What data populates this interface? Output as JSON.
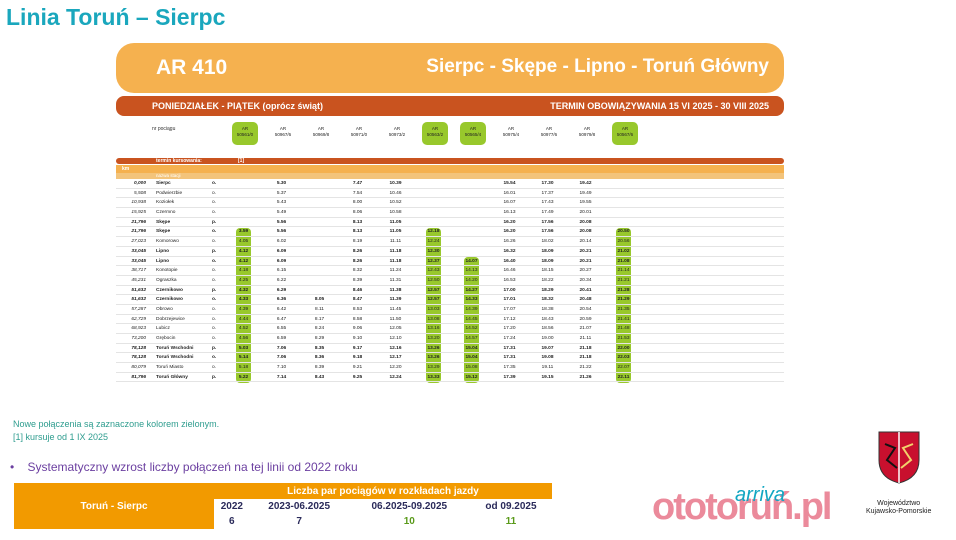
{
  "title": "Linia Toruń – Sierpc",
  "banner": {
    "train": "AR 410",
    "route": "Sierpc - Skępe - Lipno - Toruń Główny"
  },
  "daybar": {
    "left": "PONIEDZIAŁEK - PIĄTEK (oprócz świąt)",
    "right": "TERMIN OBOWIĄZYWANIA 15 VI 2025 - 30 VIII 2025"
  },
  "train_no_label": "nr pociągu",
  "trains": [
    {
      "line1": "AR",
      "line2": "50561/0",
      "green": true
    },
    {
      "line1": "AR",
      "line2": "50967/6",
      "green": false
    },
    {
      "line1": "AR",
      "line2": "50969/8",
      "green": false
    },
    {
      "line1": "AR",
      "line2": "50971/0",
      "green": false
    },
    {
      "line1": "AR",
      "line2": "50973/2",
      "green": false
    },
    {
      "line1": "AR",
      "line2": "50563/2",
      "green": true
    },
    {
      "line1": "AR",
      "line2": "50565/4",
      "green": true
    },
    {
      "line1": "AR",
      "line2": "50975/4",
      "green": false
    },
    {
      "line1": "AR",
      "line2": "50977/6",
      "green": false
    },
    {
      "line1": "AR",
      "line2": "50979/8",
      "green": false
    },
    {
      "line1": "AR",
      "line2": "50567/6",
      "green": true
    }
  ],
  "term_label": "termin kursowania:",
  "term_note": "[1]",
  "km_label": "km",
  "station_label": "nazwa stacji",
  "rows": [
    {
      "km": "0,000",
      "st": "Sierpc",
      "ad": "o.",
      "b": true,
      "t": [
        "",
        "5.30",
        "",
        "7.47",
        "10.39",
        "",
        "",
        "15.54",
        "17.30",
        "19.42",
        ""
      ]
    },
    {
      "km": "5,508",
      "st": "Podwierzbie",
      "ad": "o.",
      "b": false,
      "t": [
        "",
        "5.37",
        "",
        "7.54",
        "10.46",
        "",
        "",
        "16.01",
        "17.37",
        "19.49",
        ""
      ]
    },
    {
      "km": "10,938",
      "st": "Koziołek",
      "ad": "o.",
      "b": false,
      "t": [
        "",
        "5.43",
        "",
        "8.00",
        "10.52",
        "",
        "",
        "16.07",
        "17.43",
        "19.55",
        ""
      ]
    },
    {
      "km": "15,925",
      "st": "Czermno",
      "ad": "o.",
      "b": false,
      "t": [
        "",
        "5.49",
        "",
        "8.06",
        "10.58",
        "",
        "",
        "16.13",
        "17.49",
        "20.01",
        ""
      ]
    },
    {
      "km": "21,796",
      "st": "Skępe",
      "ad": "p.",
      "b": true,
      "t": [
        "",
        "5.56",
        "",
        "8.13",
        "11.05",
        "",
        "",
        "16.20",
        "17.56",
        "20.08",
        ""
      ]
    },
    {
      "km": "21,796",
      "st": "Skępe",
      "ad": "o.",
      "b": true,
      "t": [
        "3.59",
        "5.56",
        "",
        "8.13",
        "11.05",
        "12.18",
        "",
        "16.20",
        "17.56",
        "20.08",
        "20.50"
      ]
    },
    {
      "km": "27,023",
      "st": "Komorowo",
      "ad": "o.",
      "b": false,
      "t": [
        "4.05",
        "6.02",
        "",
        "8.19",
        "11.11",
        "12.24",
        "",
        "16.26",
        "18.02",
        "20.14",
        "20.56"
      ]
    },
    {
      "km": "33,045",
      "st": "Lipno",
      "ad": "p.",
      "b": true,
      "t": [
        "4.12",
        "6.09",
        "",
        "8.26",
        "11.18",
        "12.30",
        "",
        "16.32",
        "18.09",
        "20.21",
        "21.02"
      ]
    },
    {
      "km": "33,045",
      "st": "Lipno",
      "ad": "o.",
      "b": true,
      "t": [
        "4.12",
        "6.09",
        "",
        "8.26",
        "11.18",
        "12.37",
        "14.07",
        "16.40",
        "18.09",
        "20.21",
        "21.08"
      ]
    },
    {
      "km": "38,717",
      "st": "Konotopie",
      "ad": "o.",
      "b": false,
      "t": [
        "4.18",
        "6.15",
        "",
        "8.32",
        "11.24",
        "12.43",
        "14.13",
        "16.46",
        "18.15",
        "20.27",
        "21.14"
      ]
    },
    {
      "km": "45,231",
      "st": "Ograszka",
      "ad": "o.",
      "b": false,
      "t": [
        "4.25",
        "6.22",
        "",
        "8.39",
        "11.31",
        "12.50",
        "14.20",
        "16.53",
        "18.22",
        "20.34",
        "21.21"
      ]
    },
    {
      "km": "51,632",
      "st": "Czernikowo",
      "ad": "p.",
      "b": true,
      "t": [
        "4.32",
        "6.29",
        "",
        "8.46",
        "11.38",
        "12.57",
        "14.27",
        "17.00",
        "18.29",
        "20.41",
        "21.28"
      ]
    },
    {
      "km": "51,632",
      "st": "Czernikowo",
      "ad": "o.",
      "b": true,
      "t": [
        "4.33",
        "6.36",
        "8.05",
        "8.47",
        "11.39",
        "12.57",
        "14.33",
        "17.01",
        "18.32",
        "20.48",
        "21.29"
      ]
    },
    {
      "km": "57,287",
      "st": "Obrowo",
      "ad": "o.",
      "b": false,
      "t": [
        "4.39",
        "6.42",
        "8.11",
        "8.53",
        "11.45",
        "13.03",
        "14.39",
        "17.07",
        "18.38",
        "20.54",
        "21.35"
      ]
    },
    {
      "km": "62,729",
      "st": "Dobrzejewice",
      "ad": "o.",
      "b": false,
      "t": [
        "4.44",
        "6.47",
        "8.17",
        "8.58",
        "11.50",
        "13.08",
        "14.45",
        "17.12",
        "18.43",
        "20.59",
        "21.41"
      ]
    },
    {
      "km": "68,923",
      "st": "Lubicz",
      "ad": "o.",
      "b": false,
      "t": [
        "4.52",
        "6.55",
        "8.24",
        "9.06",
        "12.05",
        "13.16",
        "14.52",
        "17.20",
        "18.56",
        "21.07",
        "21.48"
      ]
    },
    {
      "km": "73,200",
      "st": "Grębocin",
      "ad": "o.",
      "b": false,
      "t": [
        "4.56",
        "6.59",
        "8.29",
        "9.10",
        "12.10",
        "13.20",
        "14.57",
        "17.24",
        "19.00",
        "21.11",
        "21.53"
      ]
    },
    {
      "km": "78,128",
      "st": "Toruń Wschodni",
      "ad": "p.",
      "b": true,
      "t": [
        "5.03",
        "7.06",
        "8.35",
        "9.17",
        "12.16",
        "13.26",
        "15.04",
        "17.31",
        "19.07",
        "21.18",
        "22.00"
      ]
    },
    {
      "km": "78,128",
      "st": "Toruń Wschodni",
      "ad": "o.",
      "b": true,
      "t": [
        "5.14",
        "7.06",
        "8.36",
        "9.18",
        "12.17",
        "13.26",
        "15.04",
        "17.31",
        "19.08",
        "21.18",
        "22.03"
      ]
    },
    {
      "km": "80,079",
      "st": "Toruń Miasto",
      "ad": "o.",
      "b": false,
      "t": [
        "5.18",
        "7.10",
        "8.39",
        "9.21",
        "12.20",
        "13.29",
        "15.08",
        "17.35",
        "19.11",
        "21.22",
        "22.07"
      ]
    },
    {
      "km": "81,796",
      "st": "Toruń Główny",
      "ad": "p.",
      "b": true,
      "t": [
        "5.22",
        "7.14",
        "8.43",
        "9.25",
        "12.24",
        "13.33",
        "15.12",
        "17.39",
        "19.15",
        "21.26",
        "22.11"
      ]
    }
  ],
  "notes": {
    "line1": "Nowe połączenia są zaznaczone kolorem zielonym.",
    "line2": "[1] kursuje od 1 IX 2025"
  },
  "bullet": "Systematyczny wzrost liczby połączeń na tej linii od 2022 roku",
  "stats": {
    "row_label": "Toruń - Sierpc",
    "header": "Liczba par pociągów w rozkładach jazdy",
    "periods": [
      "2022",
      "2023-06.2025",
      "06.2025-09.2025",
      "od 09.2025"
    ],
    "values": [
      "6",
      "7",
      "10",
      "11"
    ]
  },
  "logos": {
    "oto": "ototoruń.pl",
    "arriva": "arriva",
    "woj1": "Województwo",
    "woj2": "Kujawsko-Pomorskie"
  },
  "colors": {
    "accent": "#1aa7bd",
    "banner": "#f5b14f",
    "daybar": "#c9531f",
    "new": "#98c82c",
    "stats": "#f29a00"
  }
}
